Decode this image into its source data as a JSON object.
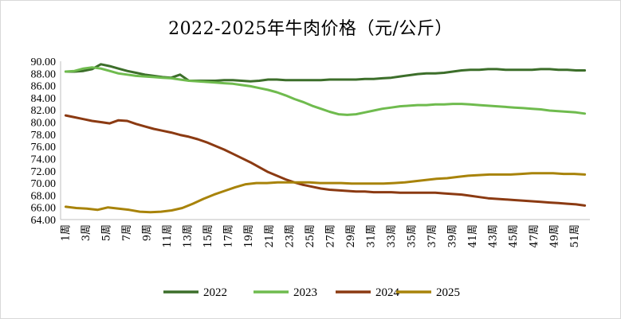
{
  "chart_data": {
    "type": "line",
    "title": "2022-2025年牛肉价格（元/公斤）",
    "xlabel": "",
    "ylabel": "",
    "ylim": [
      64,
      90
    ],
    "yticks": [
      "64.00",
      "66.00",
      "68.00",
      "70.00",
      "72.00",
      "74.00",
      "76.00",
      "78.00",
      "80.00",
      "82.00",
      "84.00",
      "86.00",
      "88.00",
      "90.00"
    ],
    "x_week_unit": "周",
    "x_tick_labels": [
      "1周",
      "3周",
      "5周",
      "7周",
      "9周",
      "11周",
      "13周",
      "15周",
      "17周",
      "19周",
      "21周",
      "23周",
      "25周",
      "27周",
      "29周",
      "31周",
      "33周",
      "35周",
      "37周",
      "39周",
      "41周",
      "43周",
      "45周",
      "47周",
      "49周",
      "51周"
    ],
    "legend_position": "bottom",
    "series": [
      {
        "name": "2022",
        "color": "#3c6e2a",
        "values": [
          88.3,
          88.3,
          88.4,
          88.7,
          89.5,
          89.2,
          88.8,
          88.4,
          88.1,
          87.8,
          87.6,
          87.4,
          87.3,
          87.8,
          86.8,
          86.8,
          86.8,
          86.8,
          86.9,
          86.9,
          86.8,
          86.7,
          86.8,
          87.0,
          87.0,
          86.9,
          86.9,
          86.9,
          86.9,
          86.9,
          87.0,
          87.0,
          87.0,
          87.0,
          87.1,
          87.1,
          87.2,
          87.3,
          87.5,
          87.7,
          87.9,
          88.0,
          88.0,
          88.1,
          88.3,
          88.5,
          88.6,
          88.6,
          88.7,
          88.7,
          88.6,
          88.6,
          88.6,
          88.6,
          88.7,
          88.7,
          88.6,
          88.6,
          88.5,
          88.5
        ]
      },
      {
        "name": "2023",
        "color": "#6fbb4e",
        "values": [
          88.3,
          88.4,
          88.8,
          89.0,
          88.8,
          88.4,
          88.0,
          87.8,
          87.6,
          87.5,
          87.4,
          87.3,
          87.2,
          87.0,
          86.8,
          86.7,
          86.6,
          86.5,
          86.4,
          86.3,
          86.1,
          85.9,
          85.6,
          85.3,
          84.9,
          84.4,
          83.8,
          83.3,
          82.7,
          82.2,
          81.7,
          81.3,
          81.2,
          81.3,
          81.6,
          81.9,
          82.2,
          82.4,
          82.6,
          82.7,
          82.8,
          82.8,
          82.9,
          82.9,
          83.0,
          83.0,
          82.9,
          82.8,
          82.7,
          82.6,
          82.5,
          82.4,
          82.3,
          82.2,
          82.1,
          81.9,
          81.8,
          81.7,
          81.6,
          81.4
        ]
      },
      {
        "name": "2024",
        "color": "#8b3a12",
        "values": [
          81.1,
          80.8,
          80.5,
          80.2,
          80.0,
          79.8,
          80.3,
          80.2,
          79.7,
          79.3,
          78.9,
          78.6,
          78.3,
          77.9,
          77.6,
          77.2,
          76.7,
          76.1,
          75.5,
          74.8,
          74.1,
          73.4,
          72.6,
          71.8,
          71.2,
          70.6,
          70.1,
          69.7,
          69.4,
          69.1,
          68.9,
          68.8,
          68.7,
          68.6,
          68.6,
          68.5,
          68.5,
          68.5,
          68.4,
          68.4,
          68.4,
          68.4,
          68.4,
          68.3,
          68.2,
          68.1,
          67.9,
          67.7,
          67.5,
          67.4,
          67.3,
          67.2,
          67.1,
          67.0,
          66.9,
          66.8,
          66.7,
          66.6,
          66.5,
          66.3
        ]
      },
      {
        "name": "2025",
        "color": "#a8830a",
        "values": [
          66.1,
          65.9,
          65.8,
          65.6,
          66.0,
          65.8,
          65.6,
          65.3,
          65.2,
          65.3,
          65.5,
          65.9,
          66.6,
          67.4,
          68.1,
          68.7,
          69.3,
          69.8,
          70.0,
          70.0,
          70.1,
          70.1,
          70.1,
          70.1,
          70.0,
          70.0,
          70.0,
          69.9,
          69.9,
          69.9,
          69.9,
          70.0,
          70.1,
          70.3,
          70.5,
          70.7,
          70.8,
          71.0,
          71.2,
          71.3,
          71.4,
          71.4,
          71.4,
          71.5,
          71.6,
          71.6,
          71.6,
          71.5,
          71.5,
          71.4
        ]
      }
    ]
  }
}
